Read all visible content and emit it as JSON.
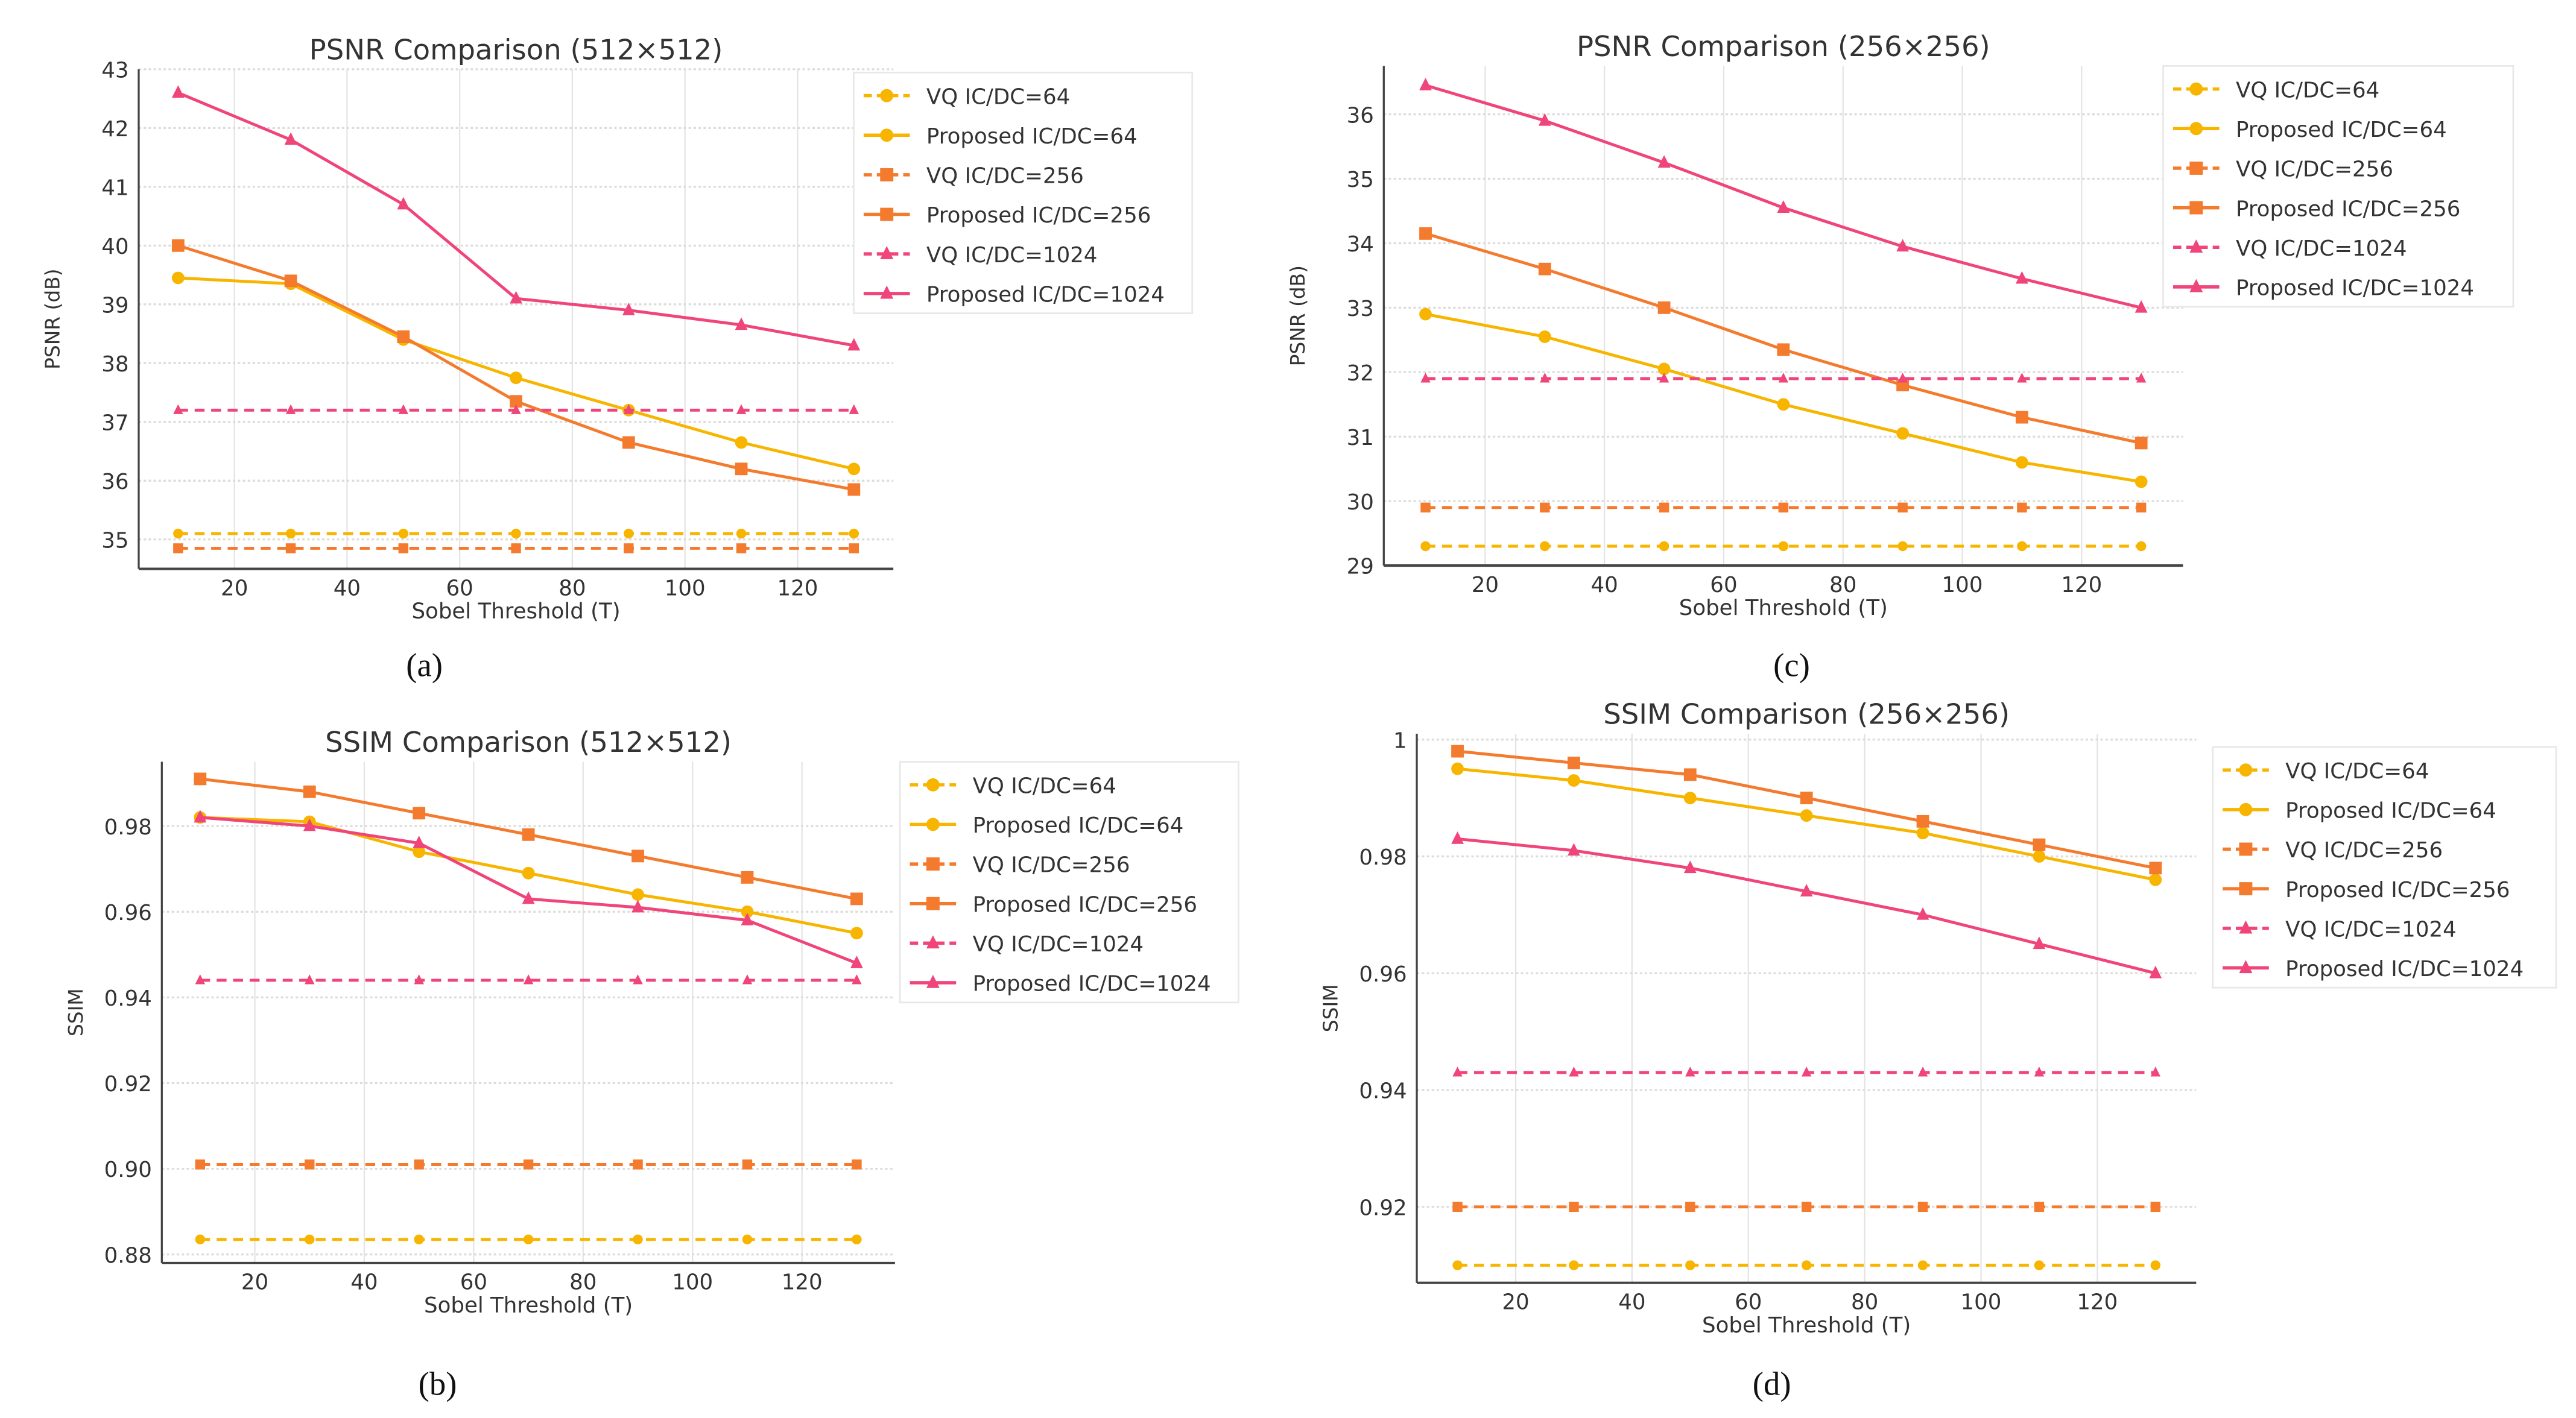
{
  "colors": {
    "ic64": "#f7b500",
    "ic256": "#f47b2e",
    "ic1024": "#f0457a"
  },
  "chart_data": [
    {
      "id": "a",
      "type": "line",
      "caption": "(a)",
      "title": "PSNR Comparison (512×512)",
      "xlabel": "Sobel Threshold (T)",
      "ylabel": "PSNR (dB)",
      "xlim": [
        3,
        137
      ],
      "ylim": [
        34.5,
        43
      ],
      "xticks": [
        20,
        40,
        60,
        80,
        100,
        120
      ],
      "yticks": [
        35,
        36,
        37,
        38,
        39,
        40,
        41,
        42,
        43
      ],
      "legend": "top-right-outside",
      "grid": true,
      "x": [
        10,
        30,
        50,
        70,
        90,
        110,
        130
      ],
      "series": [
        {
          "name": "VQ IC/DC=64",
          "key": "ic64",
          "dash": true,
          "marker": "circle",
          "values": [
            35.1,
            35.1,
            35.1,
            35.1,
            35.1,
            35.1,
            35.1
          ]
        },
        {
          "name": "Proposed IC/DC=64",
          "key": "ic64",
          "dash": false,
          "marker": "circle",
          "values": [
            39.45,
            39.35,
            38.4,
            37.75,
            37.2,
            36.65,
            36.2
          ]
        },
        {
          "name": "VQ IC/DC=256",
          "key": "ic256",
          "dash": true,
          "marker": "square",
          "values": [
            34.85,
            34.85,
            34.85,
            34.85,
            34.85,
            34.85,
            34.85
          ]
        },
        {
          "name": "Proposed IC/DC=256",
          "key": "ic256",
          "dash": false,
          "marker": "square",
          "values": [
            40.0,
            39.4,
            38.45,
            37.35,
            36.65,
            36.2,
            35.85
          ]
        },
        {
          "name": "VQ IC/DC=1024",
          "key": "ic1024",
          "dash": true,
          "marker": "triangle",
          "values": [
            37.2,
            37.2,
            37.2,
            37.2,
            37.2,
            37.2,
            37.2
          ]
        },
        {
          "name": "Proposed IC/DC=1024",
          "key": "ic1024",
          "dash": false,
          "marker": "triangle",
          "values": [
            42.6,
            41.8,
            40.7,
            39.1,
            38.9,
            38.65,
            38.3
          ]
        }
      ]
    },
    {
      "id": "c",
      "type": "line",
      "caption": "(c)",
      "title": "PSNR Comparison (256×256)",
      "xlabel": "Sobel Threshold (T)",
      "ylabel": "PSNR (dB)",
      "xlim": [
        3,
        137
      ],
      "ylim": [
        29,
        36.75
      ],
      "xticks": [
        20,
        40,
        60,
        80,
        100,
        120
      ],
      "yticks": [
        29,
        30,
        31,
        32,
        33,
        34,
        35,
        36
      ],
      "legend": "top-right-outside",
      "grid": true,
      "x": [
        10,
        30,
        50,
        70,
        90,
        110,
        130
      ],
      "series": [
        {
          "name": "VQ IC/DC=64",
          "key": "ic64",
          "dash": true,
          "marker": "circle",
          "values": [
            29.3,
            29.3,
            29.3,
            29.3,
            29.3,
            29.3,
            29.3
          ]
        },
        {
          "name": "Proposed IC/DC=64",
          "key": "ic64",
          "dash": false,
          "marker": "circle",
          "values": [
            32.9,
            32.55,
            32.05,
            31.5,
            31.05,
            30.6,
            30.3
          ]
        },
        {
          "name": "VQ IC/DC=256",
          "key": "ic256",
          "dash": true,
          "marker": "square",
          "values": [
            29.9,
            29.9,
            29.9,
            29.9,
            29.9,
            29.9,
            29.9
          ]
        },
        {
          "name": "Proposed IC/DC=256",
          "key": "ic256",
          "dash": false,
          "marker": "square",
          "values": [
            34.15,
            33.6,
            33.0,
            32.35,
            31.8,
            31.3,
            30.9
          ]
        },
        {
          "name": "VQ IC/DC=1024",
          "key": "ic1024",
          "dash": true,
          "marker": "triangle",
          "values": [
            31.9,
            31.9,
            31.9,
            31.9,
            31.9,
            31.9,
            31.9
          ]
        },
        {
          "name": "Proposed IC/DC=1024",
          "key": "ic1024",
          "dash": false,
          "marker": "triangle",
          "values": [
            36.45,
            35.9,
            35.25,
            34.55,
            33.95,
            33.45,
            33.0
          ]
        }
      ]
    },
    {
      "id": "b",
      "type": "line",
      "caption": "(b)",
      "title": "SSIM Comparison (512×512)",
      "xlabel": "Sobel Threshold (T)",
      "ylabel": "SSIM",
      "xlim": [
        3,
        137
      ],
      "ylim": [
        0.878,
        0.995
      ],
      "xticks": [
        20,
        40,
        60,
        80,
        100,
        120
      ],
      "yticks": [
        0.88,
        0.9,
        0.92,
        0.94,
        0.96,
        0.98
      ],
      "legend": "top-right-outside",
      "grid": true,
      "x": [
        10,
        30,
        50,
        70,
        90,
        110,
        130
      ],
      "series": [
        {
          "name": "VQ IC/DC=64",
          "key": "ic64",
          "dash": true,
          "marker": "circle",
          "values": [
            0.8835,
            0.8835,
            0.8835,
            0.8835,
            0.8835,
            0.8835,
            0.8835
          ]
        },
        {
          "name": "Proposed IC/DC=64",
          "key": "ic64",
          "dash": false,
          "marker": "circle",
          "values": [
            0.982,
            0.981,
            0.974,
            0.969,
            0.964,
            0.96,
            0.955
          ]
        },
        {
          "name": "VQ IC/DC=256",
          "key": "ic256",
          "dash": true,
          "marker": "square",
          "values": [
            0.901,
            0.901,
            0.901,
            0.901,
            0.901,
            0.901,
            0.901
          ]
        },
        {
          "name": "Proposed IC/DC=256",
          "key": "ic256",
          "dash": false,
          "marker": "square",
          "values": [
            0.991,
            0.988,
            0.983,
            0.978,
            0.973,
            0.968,
            0.963
          ]
        },
        {
          "name": "VQ IC/DC=1024",
          "key": "ic1024",
          "dash": true,
          "marker": "triangle",
          "values": [
            0.944,
            0.944,
            0.944,
            0.944,
            0.944,
            0.944,
            0.944
          ]
        },
        {
          "name": "Proposed IC/DC=1024",
          "key": "ic1024",
          "dash": false,
          "marker": "triangle",
          "values": [
            0.982,
            0.98,
            0.976,
            0.963,
            0.961,
            0.958,
            0.948
          ]
        }
      ]
    },
    {
      "id": "d",
      "type": "line",
      "caption": "(d)",
      "title": "SSIM Comparison (256×256)",
      "xlabel": "Sobel Threshold (T)",
      "ylabel": "SSIM",
      "xlim": [
        3,
        137
      ],
      "ylim": [
        0.907,
        1.001
      ],
      "xticks": [
        20,
        40,
        60,
        80,
        100,
        120
      ],
      "yticks": [
        0.92,
        0.94,
        0.96,
        0.98,
        1.0
      ],
      "legend": "top-right-outside",
      "grid": true,
      "x": [
        10,
        30,
        50,
        70,
        90,
        110,
        130
      ],
      "series": [
        {
          "name": "VQ IC/DC=64",
          "key": "ic64",
          "dash": true,
          "marker": "circle",
          "values": [
            0.91,
            0.91,
            0.91,
            0.91,
            0.91,
            0.91,
            0.91
          ]
        },
        {
          "name": "Proposed IC/DC=64",
          "key": "ic64",
          "dash": false,
          "marker": "circle",
          "values": [
            0.995,
            0.993,
            0.99,
            0.987,
            0.984,
            0.98,
            0.976
          ]
        },
        {
          "name": "VQ IC/DC=256",
          "key": "ic256",
          "dash": true,
          "marker": "square",
          "values": [
            0.92,
            0.92,
            0.92,
            0.92,
            0.92,
            0.92,
            0.92
          ]
        },
        {
          "name": "Proposed IC/DC=256",
          "key": "ic256",
          "dash": false,
          "marker": "square",
          "values": [
            0.998,
            0.996,
            0.994,
            0.99,
            0.986,
            0.982,
            0.978
          ]
        },
        {
          "name": "VQ IC/DC=1024",
          "key": "ic1024",
          "dash": true,
          "marker": "triangle",
          "values": [
            0.943,
            0.943,
            0.943,
            0.943,
            0.943,
            0.943,
            0.943
          ]
        },
        {
          "name": "Proposed IC/DC=1024",
          "key": "ic1024",
          "dash": false,
          "marker": "triangle",
          "values": [
            0.983,
            0.981,
            0.978,
            0.974,
            0.97,
            0.965,
            0.96
          ]
        }
      ]
    }
  ]
}
